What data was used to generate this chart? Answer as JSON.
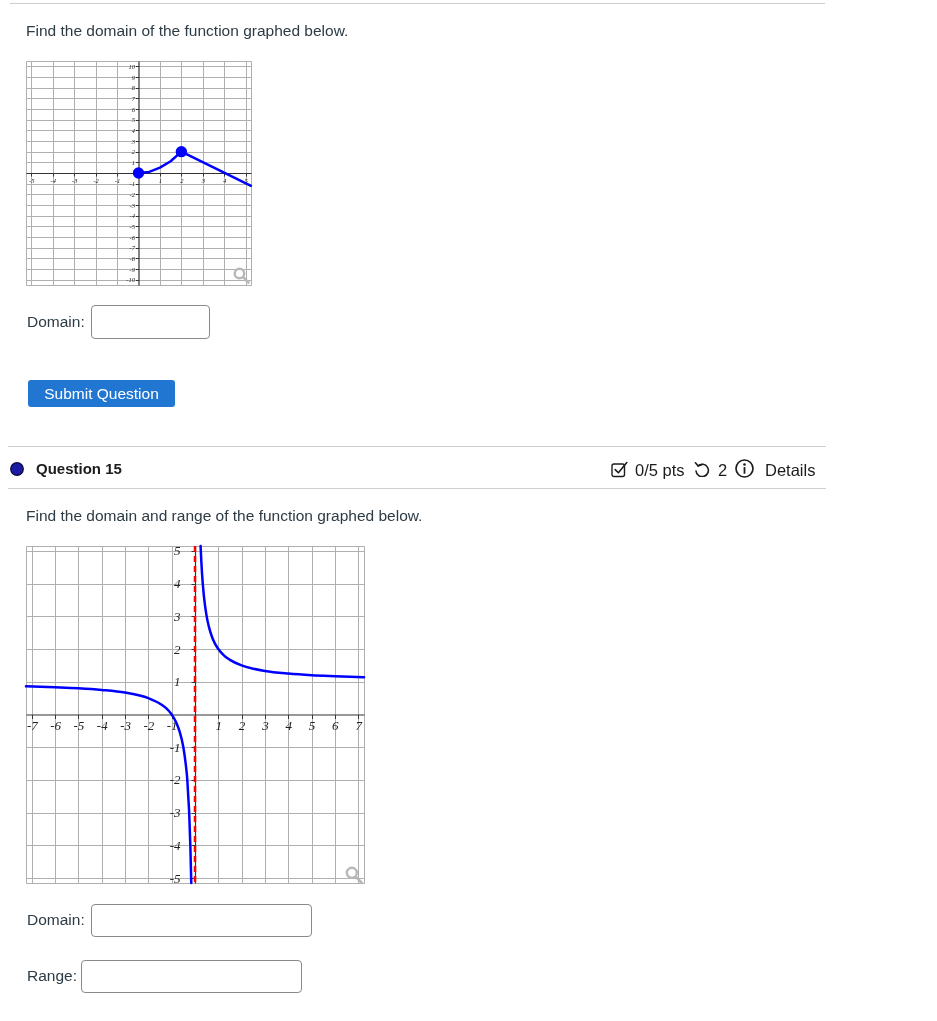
{
  "chart_data": [
    {
      "type": "line",
      "title": "Find the domain of the function graphed below.",
      "xlim": [
        -5.25,
        5.25
      ],
      "ylim": [
        -10.5,
        10.5
      ],
      "xticks": [
        -5,
        -4,
        -3,
        -2,
        -1,
        1,
        2,
        3,
        4,
        5
      ],
      "yticks": [
        -10,
        -9,
        -8,
        -7,
        -6,
        -5,
        -4,
        -3,
        -2,
        -1,
        1,
        2,
        3,
        4,
        5,
        6,
        7,
        8,
        9,
        10
      ],
      "grid": true,
      "series": [
        {
          "color": "#0000ff",
          "x": [
            0,
            0.5,
            1,
            1.5,
            2,
            5.25
          ],
          "values": [
            0,
            0.1,
            0.5,
            1.1,
            2,
            -1.2
          ]
        },
        {
          "type": "scatter",
          "marker": "circle",
          "color": "#0000ff",
          "x": [
            0,
            2
          ],
          "values": [
            0,
            2
          ]
        }
      ],
      "annotations": [
        "Domain:",
        "Submit Question"
      ]
    },
    {
      "type": "other",
      "title": "Question 15",
      "annotations": [
        "0/5 pts",
        "2",
        "Details"
      ]
    },
    {
      "type": "line",
      "title": "Find the domain and range of the function graphed below.",
      "xlim": [
        -7.25,
        7.25
      ],
      "ylim": [
        -5.15,
        5.15
      ],
      "xticks": [
        -7,
        -6,
        -5,
        -4,
        -3,
        -2,
        -1,
        1,
        2,
        3,
        4,
        5,
        6,
        7
      ],
      "yticks": [
        -5,
        -4,
        -3,
        -2,
        -1,
        1,
        2,
        3,
        4,
        5
      ],
      "grid": true,
      "series": [
        {
          "color": "#0000ff",
          "x": [
            -7.25,
            -6,
            -5,
            -4,
            -3,
            -2,
            -1.5,
            -1.25,
            -1,
            -0.8,
            -0.67,
            -0.5,
            -0.4,
            -0.33,
            -0.29,
            -0.25,
            -0.2,
            -0.16
          ],
          "values": [
            0.86,
            0.83,
            0.8,
            0.75,
            0.67,
            0.5,
            0.33,
            0.2,
            0,
            -0.25,
            -0.5,
            -1,
            -1.5,
            -2,
            -2.5,
            -3,
            -4,
            -5.15
          ]
        },
        {
          "color": "#0000ff",
          "x": [
            0.24,
            0.27,
            0.3,
            0.35,
            0.4,
            0.5,
            0.6,
            0.75,
            1,
            1.25,
            1.5,
            2,
            2.5,
            3,
            4,
            5,
            6,
            7.25
          ],
          "values": [
            5.15,
            4.7,
            4.33,
            3.86,
            3.5,
            3,
            2.67,
            2.33,
            2,
            1.8,
            1.67,
            1.5,
            1.4,
            1.33,
            1.25,
            1.2,
            1.17,
            1.14
          ]
        }
      ],
      "ref_lines": [
        {
          "axis": "x",
          "value": 0,
          "color": "#ff0000",
          "line_style": "dashed"
        }
      ],
      "annotations": [
        "Domain:",
        "Range:"
      ]
    }
  ]
}
